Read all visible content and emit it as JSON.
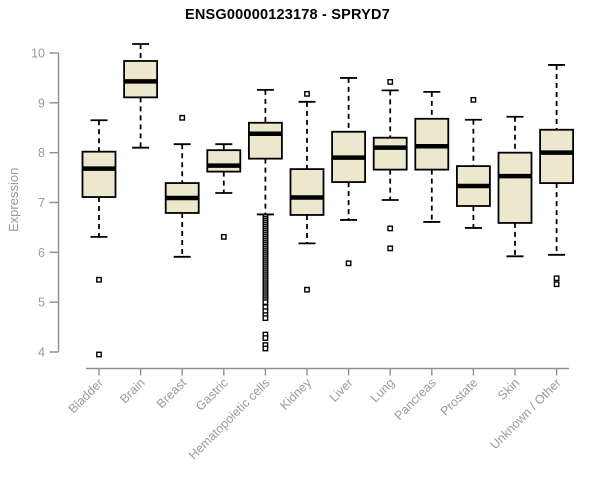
{
  "chart_data": {
    "type": "boxplot",
    "title": "ENSG00000123178 - SPRYD7",
    "ylabel": "Expression",
    "ylim": [
      4,
      10
    ],
    "yticks": [
      4,
      5,
      6,
      7,
      8,
      9,
      10
    ],
    "grid": false,
    "categories": [
      "Bladder",
      "Brain",
      "Breast",
      "Gastric",
      "Hematopoietic cells",
      "Kidney",
      "Liver",
      "Lung",
      "Pancreas",
      "Prostate",
      "Skin",
      "Unknown / Other"
    ],
    "series": [
      {
        "category": "Bladder",
        "whisker_low": 6.31,
        "q1": 7.11,
        "median": 7.68,
        "q3": 8.02,
        "whisker_high": 8.65,
        "outliers": [
          5.45,
          3.95
        ]
      },
      {
        "category": "Brain",
        "whisker_low": 8.1,
        "q1": 9.11,
        "median": 9.43,
        "q3": 9.84,
        "whisker_high": 10.18,
        "outliers": []
      },
      {
        "category": "Breast",
        "whisker_low": 5.91,
        "q1": 6.79,
        "median": 7.09,
        "q3": 7.39,
        "whisker_high": 8.17,
        "outliers": [
          8.7
        ]
      },
      {
        "category": "Gastric",
        "whisker_low": 7.19,
        "q1": 7.62,
        "median": 7.74,
        "q3": 8.05,
        "whisker_high": 8.17,
        "outliers": [
          6.31
        ]
      },
      {
        "category": "Hematopoietic cells",
        "whisker_low": 6.76,
        "q1": 7.88,
        "median": 8.38,
        "q3": 8.6,
        "whisker_high": 9.26,
        "outliers": [
          6.72,
          6.68,
          6.64,
          6.6,
          6.56,
          6.52,
          6.48,
          6.44,
          6.4,
          6.36,
          6.32,
          6.28,
          6.24,
          6.2,
          6.16,
          6.12,
          6.08,
          6.04,
          6.0,
          5.96,
          5.92,
          5.88,
          5.84,
          5.8,
          5.76,
          5.72,
          5.68,
          5.64,
          5.6,
          5.56,
          5.52,
          5.48,
          5.44,
          5.4,
          5.36,
          5.32,
          5.28,
          5.24,
          5.2,
          5.16,
          5.12,
          5.08,
          5.04,
          5.0,
          4.9,
          4.82,
          4.74,
          4.68,
          4.35,
          4.28,
          4.14,
          4.07
        ]
      },
      {
        "category": "Kidney",
        "whisker_low": 6.18,
        "q1": 6.75,
        "median": 7.1,
        "q3": 7.67,
        "whisker_high": 9.02,
        "outliers": [
          9.18,
          5.25
        ]
      },
      {
        "category": "Liver",
        "whisker_low": 6.65,
        "q1": 7.41,
        "median": 7.9,
        "q3": 8.42,
        "whisker_high": 9.5,
        "outliers": [
          5.78
        ]
      },
      {
        "category": "Lung",
        "whisker_low": 7.05,
        "q1": 7.66,
        "median": 8.1,
        "q3": 8.3,
        "whisker_high": 9.25,
        "outliers": [
          9.42,
          6.48,
          6.08
        ]
      },
      {
        "category": "Pancreas",
        "whisker_low": 6.61,
        "q1": 7.66,
        "median": 8.13,
        "q3": 8.68,
        "whisker_high": 9.22,
        "outliers": []
      },
      {
        "category": "Prostate",
        "whisker_low": 6.49,
        "q1": 6.93,
        "median": 7.33,
        "q3": 7.73,
        "whisker_high": 8.66,
        "outliers": [
          9.06
        ]
      },
      {
        "category": "Skin",
        "whisker_low": 5.92,
        "q1": 6.59,
        "median": 7.53,
        "q3": 8.0,
        "whisker_high": 8.72,
        "outliers": []
      },
      {
        "category": "Unknown / Other",
        "whisker_low": 5.95,
        "q1": 7.39,
        "median": 8.0,
        "q3": 8.46,
        "whisker_high": 9.76,
        "outliers": [
          5.48,
          5.36
        ]
      }
    ],
    "colors": {
      "box_fill": "#EDE8CD",
      "box_stroke": "#000000",
      "whisker": "#000000",
      "median": "#000000",
      "outlier_stroke": "#000000",
      "outlier_fill": "#FFFFFF",
      "axis": "#8f8f8f",
      "tick_label": "#9b9b9b",
      "title": "#000000",
      "background": "#FFFFFF"
    },
    "legend": null
  }
}
